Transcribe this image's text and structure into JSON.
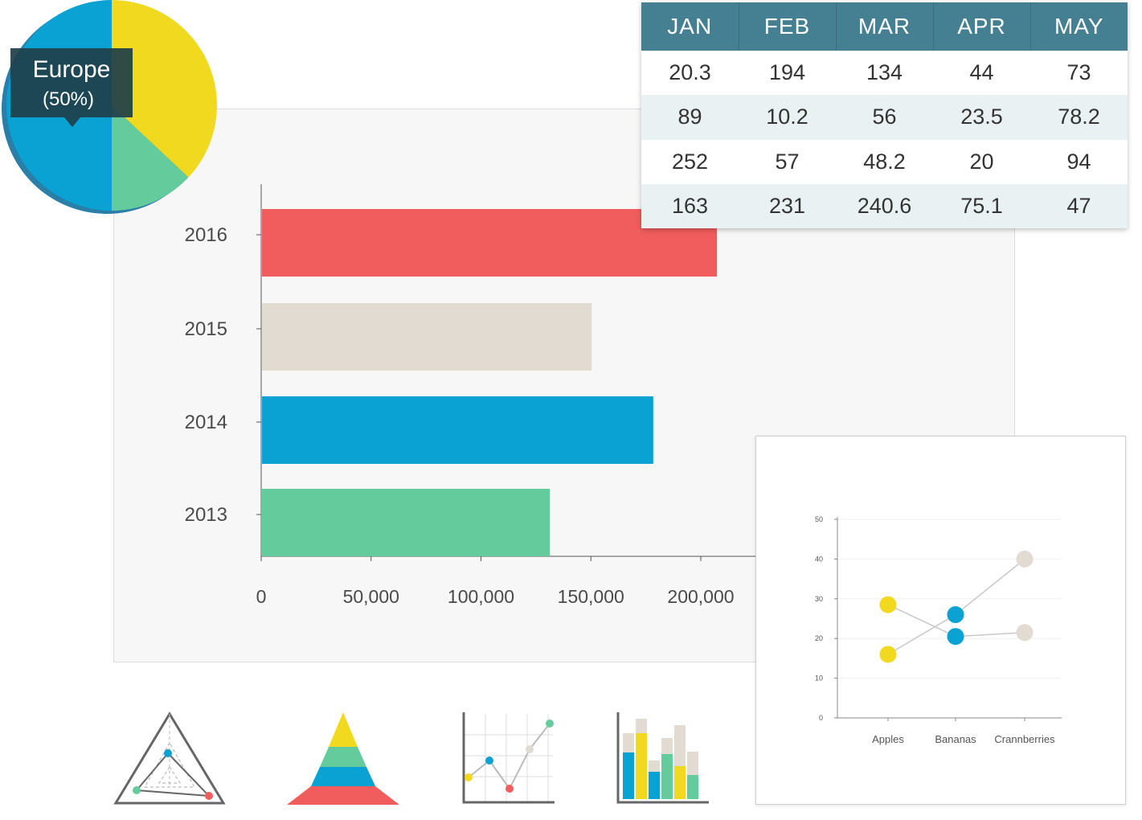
{
  "chart_data": [
    {
      "type": "pie",
      "slices": [
        {
          "label": "Europe",
          "value": 50,
          "color": "#0aa1d3"
        },
        {
          "label": "",
          "value": 37,
          "color": "#f1d920"
        },
        {
          "label": "",
          "value": 13,
          "color": "#64cc9c"
        }
      ],
      "tooltip": {
        "label": "Europe",
        "value_text": "(50%)"
      }
    },
    {
      "type": "bar",
      "orientation": "horizontal",
      "categories": [
        "2016",
        "2015",
        "2014",
        "2013"
      ],
      "values": [
        207000,
        150000,
        178000,
        131000
      ],
      "colors": [
        "#f15d5d",
        "#e2dbd1",
        "#0aa1d3",
        "#64cc9c"
      ],
      "xticks": [
        "0",
        "50,000",
        "100,000",
        "150,000",
        "200,000"
      ],
      "xlim": [
        0,
        200000
      ]
    },
    {
      "type": "table",
      "columns": [
        "JAN",
        "FEB",
        "MAR",
        "APR",
        "MAY"
      ],
      "rows": [
        [
          "20.3",
          "194",
          "134",
          "44",
          "73"
        ],
        [
          "89",
          "10.2",
          "56",
          "23.5",
          "78.2"
        ],
        [
          "252",
          "57",
          "48.2",
          "20",
          "94"
        ],
        [
          "163",
          "231",
          "240.6",
          "75.1",
          "47"
        ]
      ]
    },
    {
      "type": "line",
      "categories": [
        "Apples",
        "Bananas",
        "Crannberries"
      ],
      "series": [
        {
          "values": [
            28.5,
            20.5,
            21.5
          ],
          "color": "#f1d920",
          "end_color": "#e2dbd1"
        },
        {
          "values": [
            16,
            26,
            40
          ],
          "color": "#f1d920",
          "end_color": "#e2dbd1"
        }
      ],
      "point_colors": [
        "#f1d920",
        "#0aa1d3",
        "#e2dbd1"
      ],
      "yticks": [
        "0",
        "10",
        "20",
        "30",
        "40",
        "50"
      ],
      "ylim": [
        0,
        50
      ]
    }
  ],
  "icons": [
    "radar-chart-icon",
    "pyramid-chart-icon",
    "line-chart-icon",
    "stacked-bar-chart-icon"
  ]
}
